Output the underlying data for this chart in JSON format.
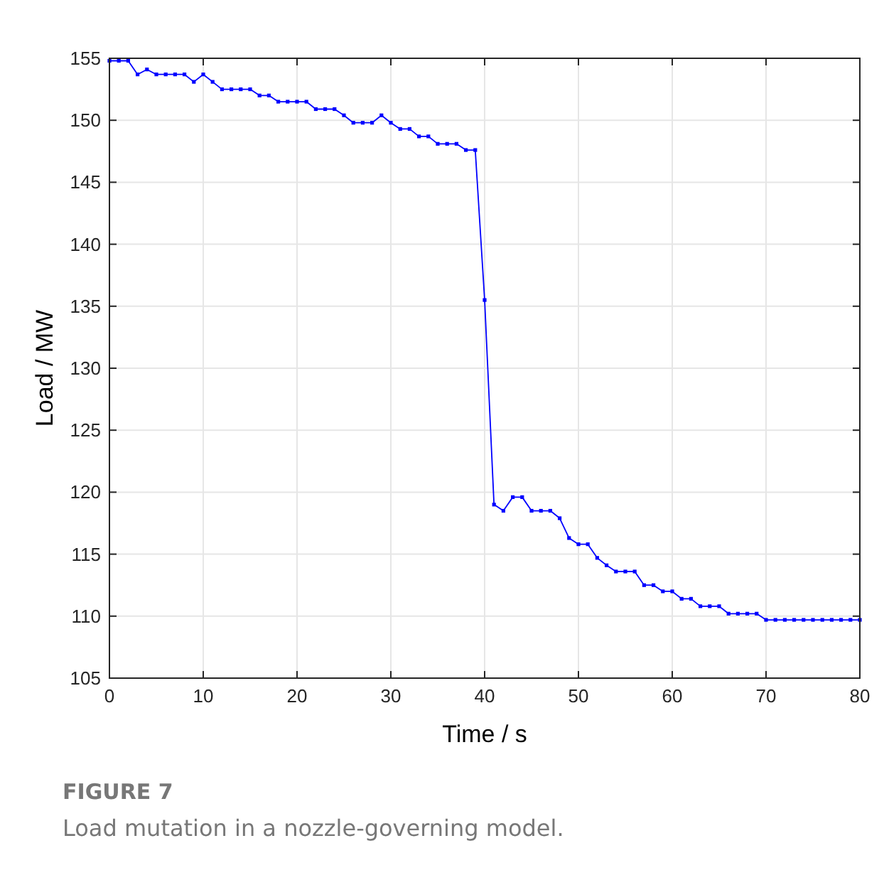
{
  "chart_data": {
    "type": "line",
    "xlabel": "Time / s",
    "ylabel": "Load / MW",
    "annotations": [
      "FIGURE 7",
      "Load mutation in a nozzle-governing model."
    ],
    "x": [
      0,
      1,
      2,
      3,
      4,
      5,
      6,
      7,
      8,
      9,
      10,
      11,
      12,
      13,
      14,
      15,
      16,
      17,
      18,
      19,
      20,
      21,
      22,
      23,
      24,
      25,
      26,
      27,
      28,
      29,
      30,
      31,
      32,
      33,
      34,
      35,
      36,
      37,
      38,
      39,
      40,
      41,
      42,
      43,
      44,
      45,
      46,
      47,
      48,
      49,
      50,
      51,
      52,
      53,
      54,
      55,
      56,
      57,
      58,
      59,
      60,
      61,
      62,
      63,
      64,
      65,
      66,
      67,
      68,
      69,
      70,
      71,
      72,
      73,
      74,
      75,
      76,
      77,
      78,
      79,
      80
    ],
    "series": [
      {
        "color": "#0000ff",
        "values": [
          154.8,
          154.8,
          154.8,
          153.7,
          154.1,
          153.7,
          153.7,
          153.7,
          153.7,
          153.1,
          153.7,
          153.1,
          152.5,
          152.5,
          152.5,
          152.5,
          152.0,
          152.0,
          151.5,
          151.5,
          151.5,
          151.5,
          150.9,
          150.9,
          150.9,
          150.4,
          149.8,
          149.8,
          149.8,
          150.4,
          149.8,
          149.3,
          149.3,
          148.7,
          148.7,
          148.1,
          148.1,
          148.1,
          147.6,
          147.6,
          135.5,
          119.0,
          118.5,
          119.6,
          119.6,
          118.5,
          118.5,
          118.5,
          117.9,
          116.3,
          115.8,
          115.8,
          114.7,
          114.1,
          113.6,
          113.6,
          113.6,
          112.5,
          112.5,
          112.0,
          112.0,
          111.4,
          111.4,
          110.8,
          110.8,
          110.8,
          110.2,
          110.2,
          110.2,
          110.2,
          109.7,
          109.7,
          109.7,
          109.7,
          109.7,
          109.7,
          109.7,
          109.7,
          109.7,
          109.7,
          109.7
        ]
      }
    ],
    "xlim": [
      0,
      80
    ],
    "xticks": [
      0,
      10,
      20,
      30,
      40,
      50,
      60,
      70,
      80
    ],
    "ylim": [
      105,
      155
    ],
    "yticks": [
      105,
      110,
      115,
      120,
      125,
      130,
      135,
      140,
      145,
      150,
      155
    ],
    "grid": true,
    "marker": "square",
    "line_style": "solid"
  }
}
